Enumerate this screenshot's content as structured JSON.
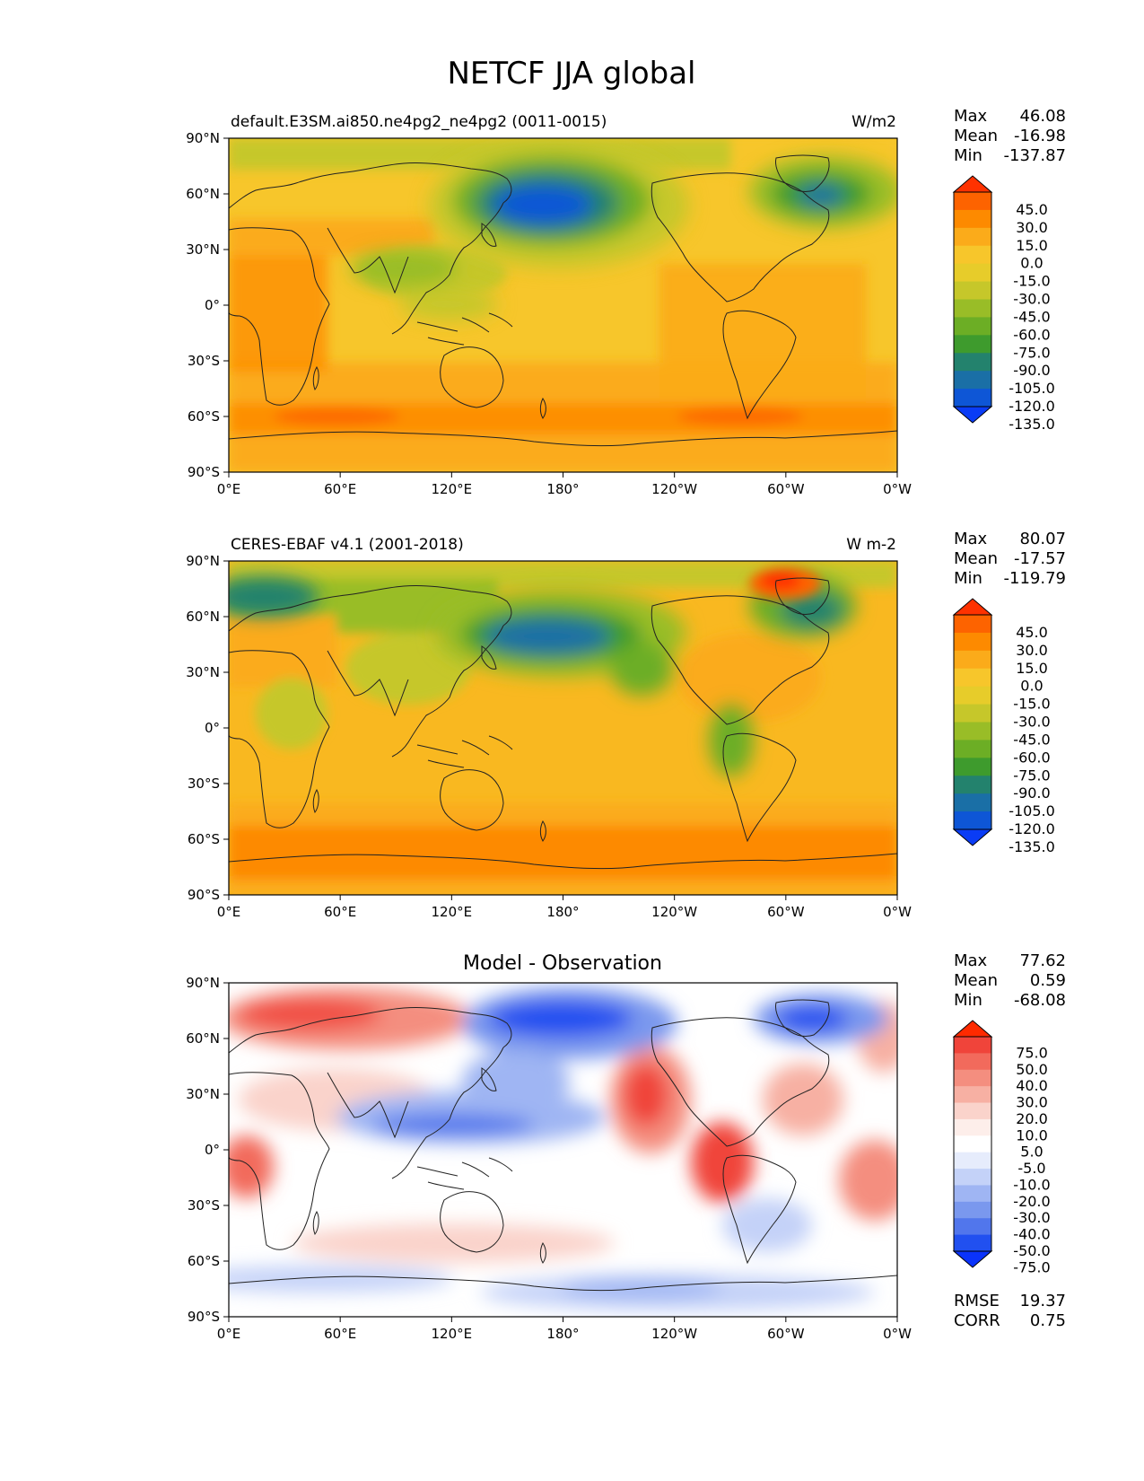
{
  "figure_title": "NETCF JJA global",
  "x_ticks": [
    "0°E",
    "60°E",
    "120°E",
    "180°",
    "120°W",
    "60°W",
    "0°W"
  ],
  "y_ticks": [
    "90°N",
    "60°N",
    "30°N",
    "0°",
    "30°S",
    "60°S",
    "90°S"
  ],
  "panels": [
    {
      "id": "model",
      "left_title": "default.E3SM.ai850.ne4pg2_ne4pg2 (0011-0015)",
      "center_title": "",
      "units": "W/m2",
      "stats": [
        {
          "label": "Max",
          "value": "46.08"
        },
        {
          "label": "Mean",
          "value": "-16.98"
        },
        {
          "label": "Min",
          "value": "-137.87"
        }
      ],
      "colorbar_labels": [
        "45.0",
        "30.0",
        "15.0",
        "0.0",
        "-15.0",
        "-30.0",
        "-45.0",
        "-60.0",
        "-75.0",
        "-90.0",
        "-105.0",
        "-120.0",
        "-135.0"
      ],
      "colorbar_colors": [
        "#fe3200",
        "#fd6300",
        "#fd8a00",
        "#fbab1a",
        "#f7c62b",
        "#e7cc2a",
        "#c6c72a",
        "#99bd27",
        "#6cae25",
        "#3e9b2d",
        "#23826d",
        "#1a6fa6",
        "#0e56d6",
        "#0a3cf5"
      ]
    },
    {
      "id": "obs",
      "left_title": "CERES-EBAF v4.1 (2001-2018)",
      "center_title": "",
      "units": "W m-2",
      "stats": [
        {
          "label": "Max",
          "value": "80.07"
        },
        {
          "label": "Mean",
          "value": "-17.57"
        },
        {
          "label": "Min",
          "value": "-119.79"
        }
      ],
      "colorbar_labels": [
        "45.0",
        "30.0",
        "15.0",
        "0.0",
        "-15.0",
        "-30.0",
        "-45.0",
        "-60.0",
        "-75.0",
        "-90.0",
        "-105.0",
        "-120.0",
        "-135.0"
      ],
      "colorbar_colors": [
        "#fe3200",
        "#fd6300",
        "#fd8a00",
        "#fbab1a",
        "#f7c62b",
        "#e7cc2a",
        "#c6c72a",
        "#99bd27",
        "#6cae25",
        "#3e9b2d",
        "#23826d",
        "#1a6fa6",
        "#0e56d6",
        "#0a3cf5"
      ]
    },
    {
      "id": "diff",
      "left_title": "",
      "center_title": "Model - Observation",
      "units": "",
      "stats": [
        {
          "label": "Max",
          "value": "77.62"
        },
        {
          "label": "Mean",
          "value": "0.59"
        },
        {
          "label": "Min",
          "value": "-68.08"
        }
      ],
      "extra_stats": [
        {
          "label": "RMSE",
          "value": "19.37"
        },
        {
          "label": "CORR",
          "value": "0.75"
        }
      ],
      "colorbar_labels": [
        "75.0",
        "50.0",
        "40.0",
        "30.0",
        "20.0",
        "10.0",
        "5.0",
        "-5.0",
        "-10.0",
        "-20.0",
        "-30.0",
        "-40.0",
        "-50.0",
        "-75.0"
      ],
      "colorbar_colors": [
        "#fe2a00",
        "#f0443a",
        "#f26a5c",
        "#f48e7f",
        "#f7b0a3",
        "#fad3cb",
        "#fdeeea",
        "#ffffff",
        "#e6ecfc",
        "#c4d2f8",
        "#9fb5f3",
        "#7a98ee",
        "#5176ec",
        "#2150f0",
        "#0a33fb"
      ]
    }
  ],
  "colors": {
    "model_base": "#f7c62b",
    "obs_base": "#f9b820",
    "diff_base": "#ffffff",
    "coast": "#222222"
  }
}
